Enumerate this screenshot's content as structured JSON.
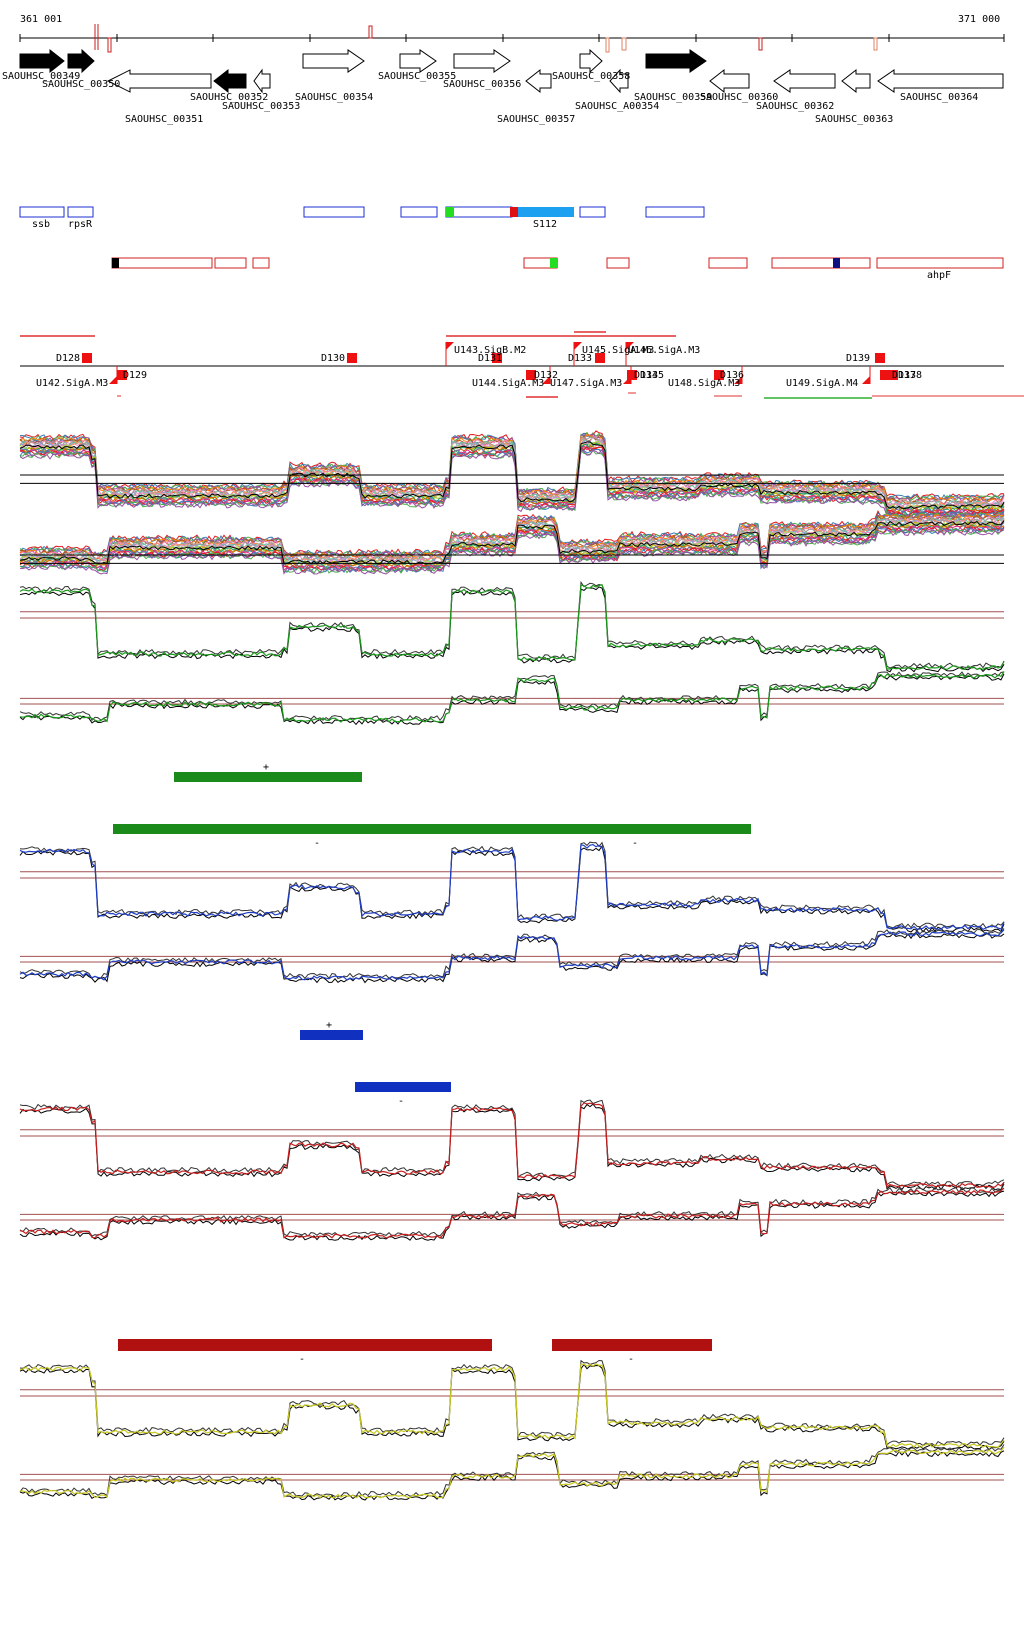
{
  "scale": {
    "start_label": "361 001",
    "end_label": "371 000"
  },
  "genes": [
    {
      "name": "SAOUHSC_00349",
      "strand": "+",
      "filled": true
    },
    {
      "name": "SAOUHSC_00350",
      "strand": "+",
      "filled": true
    },
    {
      "name": "SAOUHSC_00351",
      "strand": "-",
      "filled": false
    },
    {
      "name": "SAOUHSC_00352",
      "strand": "-",
      "filled": true
    },
    {
      "name": "SAOUHSC_00353",
      "strand": "-",
      "filled": false
    },
    {
      "name": "SAOUHSC_00354",
      "strand": "+",
      "filled": false
    },
    {
      "name": "SAOUHSC_00355",
      "strand": "+",
      "filled": false
    },
    {
      "name": "SAOUHSC_00356",
      "strand": "+",
      "filled": false
    },
    {
      "name": "SAOUHSC_00357",
      "strand": "-",
      "filled": false
    },
    {
      "name": "SAOUHSC_00358",
      "strand": "+",
      "filled": false
    },
    {
      "name": "SAOUHSC_A00354",
      "strand": "-",
      "filled": false
    },
    {
      "name": "SAOUHSC_00359",
      "strand": "+",
      "filled": true
    },
    {
      "name": "SAOUHSC_00360",
      "strand": "-",
      "filled": false
    },
    {
      "name": "SAOUHSC_00362",
      "strand": "-",
      "filled": false
    },
    {
      "name": "SAOUHSC_00363",
      "strand": "-",
      "filled": false
    },
    {
      "name": "SAOUHSC_00364",
      "strand": "-",
      "filled": false
    }
  ],
  "features_blue": [
    "ssb",
    "rpsR",
    "S112"
  ],
  "features_red": [
    "ahpF"
  ],
  "elements_top": [
    "D128",
    "D130",
    "U143.SigB.M2",
    "D131",
    "U145.SigA.M3",
    "U146.SigA.M3",
    "D133",
    "D139"
  ],
  "elements_bottom": [
    "U142.SigA.M3",
    "D129",
    "U144.SigA.M3",
    "D132",
    "U147.SigA.M3",
    "D134",
    "D135",
    "U148.SigA.M3",
    "D136",
    "U149.SigA.M4",
    "D137",
    "D138"
  ],
  "tracks": [
    {
      "name": "all-conditions",
      "color": "#555555"
    },
    {
      "name": "green-condition",
      "color": "#1a9a1a",
      "segments": [
        {
          "strand": "+"
        },
        {
          "strand": "-"
        },
        {
          "strand": "-"
        }
      ]
    },
    {
      "name": "blue-condition",
      "color": "#1f3fc8",
      "segments": [
        {
          "strand": "+"
        },
        {
          "strand": "-"
        }
      ]
    },
    {
      "name": "red-condition",
      "color": "#c81e1e",
      "segments": [
        {
          "strand": "-"
        },
        {
          "strand": "-"
        }
      ]
    },
    {
      "name": "yellow-condition",
      "color": "#d8d82a"
    }
  ]
}
